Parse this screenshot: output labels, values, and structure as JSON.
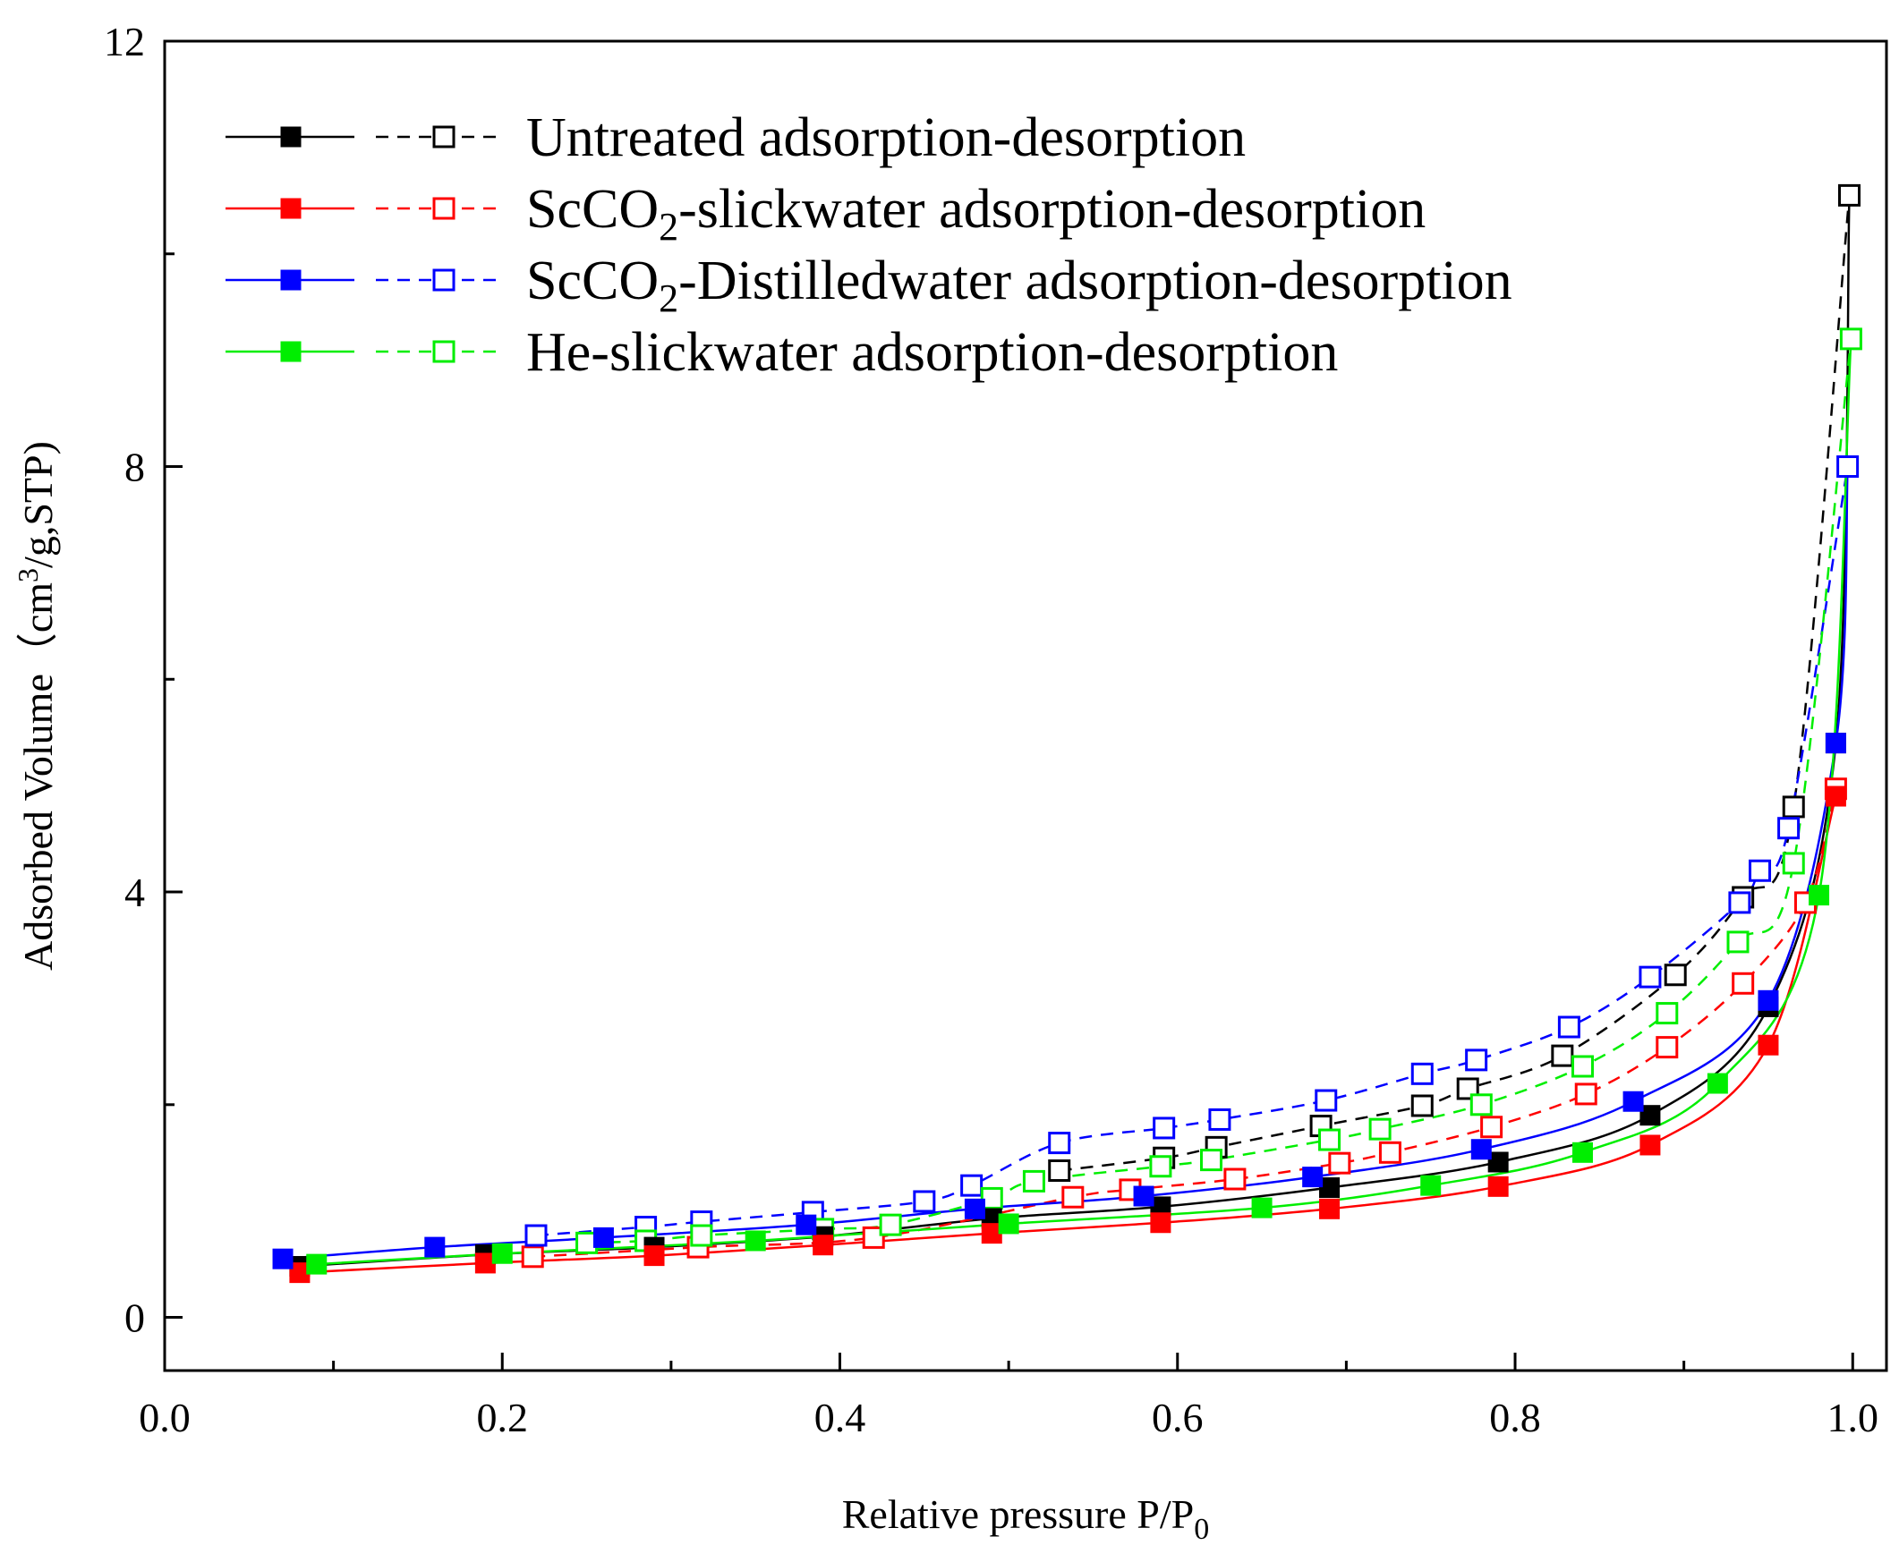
{
  "chart_data": {
    "type": "line",
    "x_axis": {
      "label_main": "Relative pressure P/P",
      "label_sub": "0",
      "range": [
        0.0,
        1.02
      ],
      "ticks": [
        0.0,
        0.2,
        0.4,
        0.6,
        0.8,
        1.0
      ],
      "tick_labels": [
        "0.0",
        "0.2",
        "0.4",
        "0.6",
        "0.8",
        "1.0"
      ]
    },
    "y_axis": {
      "label_main": "Adsorbed Volume（cm",
      "label_sup": "3",
      "label_rest": "/g,STP)",
      "range": [
        -0.5,
        12.0
      ],
      "ticks": [
        0,
        4,
        8,
        12
      ],
      "tick_labels": [
        "0",
        "4",
        "8",
        "12"
      ]
    },
    "grid": false,
    "legend_placement": "top-left",
    "series": [
      {
        "name": "Untreated adsorption-desorption",
        "name_parts": [
          "Untreated adsorption-desorption"
        ],
        "color": "#000000",
        "adsorption": [
          [
            0.08,
            0.48
          ],
          [
            0.19,
            0.59
          ],
          [
            0.29,
            0.66
          ],
          [
            0.39,
            0.76
          ],
          [
            0.49,
            0.93
          ],
          [
            0.59,
            1.04
          ],
          [
            0.69,
            1.22
          ],
          [
            0.79,
            1.46
          ],
          [
            0.88,
            1.9
          ],
          [
            0.95,
            2.92
          ],
          [
            0.99,
            5.4
          ]
        ],
        "desorption": [
          [
            0.998,
            10.55
          ],
          [
            0.965,
            4.8
          ],
          [
            0.935,
            3.95
          ],
          [
            0.895,
            3.22
          ],
          [
            0.828,
            2.46
          ],
          [
            0.772,
            2.15
          ],
          [
            0.745,
            1.99
          ],
          [
            0.685,
            1.8
          ],
          [
            0.623,
            1.6
          ],
          [
            0.592,
            1.5
          ],
          [
            0.53,
            1.38
          ]
        ]
      },
      {
        "name": "ScCO2-slickwater adsorption-desorption",
        "name_parts": [
          "ScCO",
          "2",
          "-slickwater adsorption-desorption"
        ],
        "color": "#ff0000",
        "adsorption": [
          [
            0.08,
            0.42
          ],
          [
            0.19,
            0.51
          ],
          [
            0.29,
            0.58
          ],
          [
            0.39,
            0.68
          ],
          [
            0.49,
            0.79
          ],
          [
            0.59,
            0.89
          ],
          [
            0.69,
            1.02
          ],
          [
            0.79,
            1.23
          ],
          [
            0.88,
            1.62
          ],
          [
            0.95,
            2.56
          ],
          [
            0.99,
            4.9
          ]
        ],
        "desorption": [
          [
            0.99,
            4.97
          ],
          [
            0.972,
            3.9
          ],
          [
            0.935,
            3.14
          ],
          [
            0.89,
            2.54
          ],
          [
            0.842,
            2.1
          ],
          [
            0.786,
            1.79
          ],
          [
            0.726,
            1.55
          ],
          [
            0.696,
            1.45
          ],
          [
            0.634,
            1.3
          ],
          [
            0.572,
            1.2
          ],
          [
            0.538,
            1.13
          ],
          [
            0.42,
            0.75
          ],
          [
            0.316,
            0.66
          ],
          [
            0.218,
            0.57
          ]
        ]
      },
      {
        "name": "ScCO2-Distilledwater adsorption-desorption",
        "name_parts": [
          "ScCO",
          "2",
          "-Distilledwater adsorption-desorption"
        ],
        "color": "#0000ff",
        "adsorption": [
          [
            0.07,
            0.55
          ],
          [
            0.16,
            0.66
          ],
          [
            0.26,
            0.75
          ],
          [
            0.38,
            0.87
          ],
          [
            0.48,
            1.02
          ],
          [
            0.58,
            1.14
          ],
          [
            0.68,
            1.32
          ],
          [
            0.78,
            1.58
          ],
          [
            0.87,
            2.03
          ],
          [
            0.95,
            2.98
          ],
          [
            0.99,
            5.4
          ]
        ],
        "desorption": [
          [
            0.997,
            8.0
          ],
          [
            0.962,
            4.6
          ],
          [
            0.945,
            4.2
          ],
          [
            0.933,
            3.9
          ],
          [
            0.88,
            3.2
          ],
          [
            0.832,
            2.73
          ],
          [
            0.777,
            2.42
          ],
          [
            0.745,
            2.29
          ],
          [
            0.688,
            2.04
          ],
          [
            0.625,
            1.86
          ],
          [
            0.592,
            1.78
          ],
          [
            0.53,
            1.64
          ],
          [
            0.478,
            1.24
          ],
          [
            0.45,
            1.09
          ],
          [
            0.384,
            0.99
          ],
          [
            0.318,
            0.9
          ],
          [
            0.285,
            0.85
          ],
          [
            0.22,
            0.77
          ]
        ]
      },
      {
        "name": "He-slickwater adsorption-desorption",
        "name_parts": [
          "He-slickwater adsorption-desorption"
        ],
        "color": "#00ee00",
        "adsorption": [
          [
            0.09,
            0.5
          ],
          [
            0.2,
            0.6
          ],
          [
            0.35,
            0.72
          ],
          [
            0.5,
            0.88
          ],
          [
            0.65,
            1.03
          ],
          [
            0.75,
            1.24
          ],
          [
            0.84,
            1.55
          ],
          [
            0.92,
            2.2
          ],
          [
            0.98,
            3.97
          ]
        ],
        "desorption": [
          [
            0.999,
            9.2
          ],
          [
            0.965,
            4.27
          ],
          [
            0.932,
            3.53
          ],
          [
            0.89,
            2.86
          ],
          [
            0.84,
            2.36
          ],
          [
            0.78,
            2.0
          ],
          [
            0.72,
            1.77
          ],
          [
            0.69,
            1.67
          ],
          [
            0.62,
            1.48
          ],
          [
            0.59,
            1.42
          ],
          [
            0.515,
            1.28
          ],
          [
            0.49,
            1.12
          ],
          [
            0.43,
            0.87
          ],
          [
            0.39,
            0.83
          ],
          [
            0.318,
            0.77
          ],
          [
            0.285,
            0.72
          ],
          [
            0.25,
            0.7
          ]
        ]
      }
    ]
  }
}
